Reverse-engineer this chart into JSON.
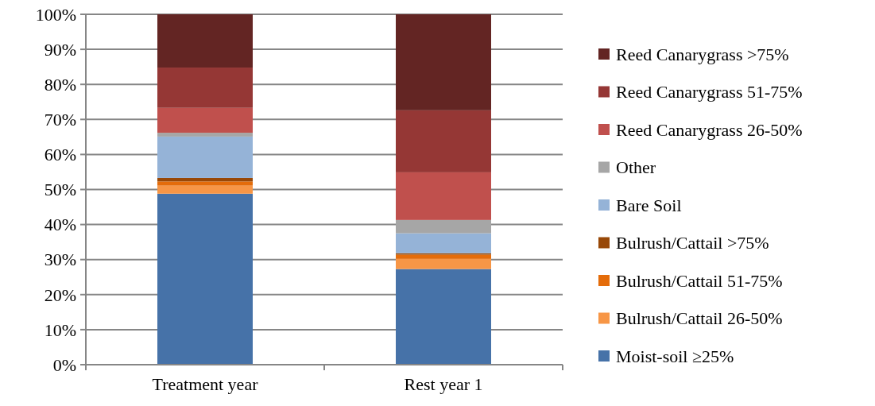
{
  "chart_data": {
    "type": "bar",
    "stacked": true,
    "categories": [
      "Treatment year",
      "Rest year 1"
    ],
    "series": [
      {
        "name": "Moist-soil ≥25%",
        "color": "#4672a8",
        "values": [
          48.8,
          27.3
        ]
      },
      {
        "name": "Bulrush/Cattail 26-50%",
        "color": "#f79646",
        "values": [
          2.3,
          2.9
        ]
      },
      {
        "name": "Bulrush/Cattail 51-75%",
        "color": "#e46c0a",
        "values": [
          1.2,
          1.2
        ]
      },
      {
        "name": "Bulrush/Cattail >75%",
        "color": "#984807",
        "values": [
          1.0,
          0.4
        ]
      },
      {
        "name": "Bare Soil",
        "color": "#95b3d7",
        "values": [
          11.8,
          5.7
        ]
      },
      {
        "name": "Other",
        "color": "#a6a6a6",
        "values": [
          1.1,
          3.8
        ]
      },
      {
        "name": "Reed Canarygrass 26-50%",
        "color": "#c0504d",
        "values": [
          7.1,
          13.6
        ]
      },
      {
        "name": "Reed Canarygrass 51-75%",
        "color": "#953735",
        "values": [
          11.5,
          17.7
        ]
      },
      {
        "name": "Reed Canarygrass >75%",
        "color": "#632523",
        "values": [
          15.2,
          27.4
        ]
      }
    ],
    "ylim": [
      0,
      100
    ],
    "yticks": [
      {
        "value": 0,
        "label": "0%"
      },
      {
        "value": 10,
        "label": "10%"
      },
      {
        "value": 20,
        "label": "20%"
      },
      {
        "value": 30,
        "label": "30%"
      },
      {
        "value": 40,
        "label": "40%"
      },
      {
        "value": 50,
        "label": "50%"
      },
      {
        "value": 60,
        "label": "60%"
      },
      {
        "value": 70,
        "label": "70%"
      },
      {
        "value": 80,
        "label": "80%"
      },
      {
        "value": 90,
        "label": "90%"
      },
      {
        "value": 100,
        "label": "100%"
      }
    ],
    "grid": "y",
    "legend": "right"
  }
}
